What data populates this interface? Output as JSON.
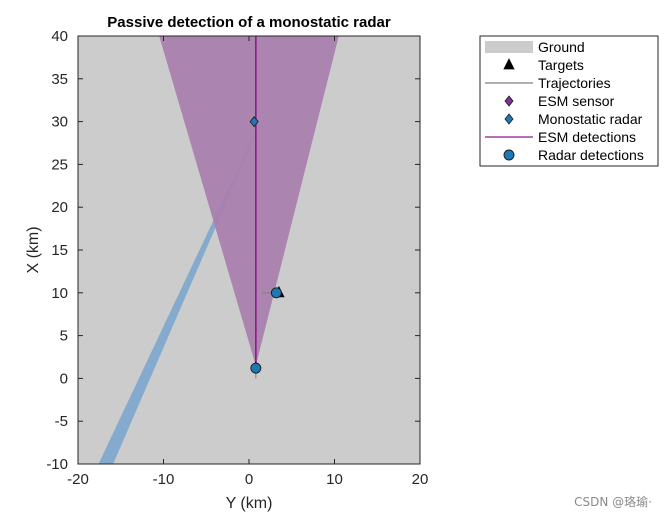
{
  "chart_data": {
    "type": "scatter",
    "title": "Passive detection of a monostatic radar",
    "xlabel": "Y (km)",
    "ylabel": "X (km)",
    "xlim": [
      -20,
      20
    ],
    "ylim": [
      -10,
      40
    ],
    "xticks": [
      -20,
      -10,
      0,
      10,
      20
    ],
    "yticks": [
      -10,
      -5,
      0,
      5,
      10,
      15,
      20,
      25,
      30,
      35,
      40
    ],
    "grid": false,
    "legend_position": "outside top-right",
    "background_region": {
      "name": "Ground",
      "color": "#cccccc"
    },
    "coverage_regions": [
      {
        "name": "radar-beam",
        "color": "#7fa9cc",
        "polygon": [
          [
            0.8,
            28.5
          ],
          [
            -15.9,
            -10
          ],
          [
            -17.6,
            -10
          ],
          [
            0.6,
            28.5
          ]
        ]
      },
      {
        "name": "esm-field-of-view",
        "color": "#a97fae",
        "polygon": [
          [
            0.8,
            1.5
          ],
          [
            -10.5,
            40
          ],
          [
            10.5,
            40
          ]
        ]
      }
    ],
    "series": [
      {
        "name": "Targets",
        "marker": "triangle",
        "color": "#000000",
        "points": [
          [
            3.5,
            10
          ]
        ]
      },
      {
        "name": "Trajectories",
        "marker": "line",
        "color": "#808080",
        "lines": [
          [
            [
              0.8,
              0
            ],
            [
              0.8,
              1.2
            ]
          ],
          [
            [
              1.5,
              10
            ],
            [
              3.5,
              10
            ]
          ]
        ]
      },
      {
        "name": "ESM sensor",
        "marker": "diamond",
        "color": "#7b3294",
        "points": [
          [
            0.8,
            1.3
          ]
        ]
      },
      {
        "name": "Monostatic radar",
        "marker": "diamond",
        "color": "#1f78b4",
        "points": [
          [
            0.6,
            30
          ]
        ]
      },
      {
        "name": "ESM detections",
        "marker": "line",
        "color": "#8b1a8b",
        "lines": [
          [
            [
              0.8,
              1.5
            ],
            [
              0.8,
              40
            ]
          ]
        ]
      },
      {
        "name": "Radar detections",
        "marker": "circle",
        "color": "#1f78b4",
        "points": [
          [
            3.2,
            10
          ],
          [
            0.8,
            1.2
          ]
        ]
      }
    ],
    "legend": [
      "Ground",
      "Targets",
      "Trajectories",
      "ESM sensor",
      "Monostatic radar",
      "ESM detections",
      "Radar detections"
    ]
  },
  "watermark": "CSDN @珞瑜·"
}
